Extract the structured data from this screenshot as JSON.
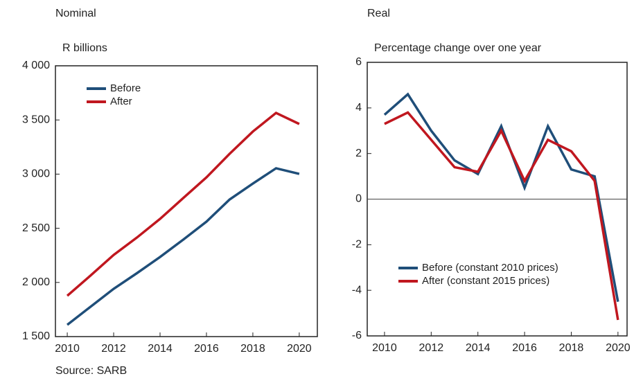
{
  "chart_data": [
    {
      "type": "line",
      "title": "Nominal",
      "y_label": "R billions",
      "x": [
        2010,
        2011,
        2012,
        2013,
        2014,
        2015,
        2016,
        2017,
        2018,
        2019,
        2020
      ],
      "series": [
        {
          "name": "Before",
          "color": "#1f4e79",
          "values": [
            1609,
            1775,
            1941,
            2085,
            2235,
            2395,
            2561,
            2766,
            2913,
            3054,
            3002
          ]
        },
        {
          "name": "After",
          "color": "#c0171f",
          "values": [
            1877,
            2063,
            2254,
            2414,
            2587,
            2779,
            2970,
            3188,
            3393,
            3565,
            3463
          ]
        }
      ],
      "xlim": [
        2009.49,
        2020.78
      ],
      "xticks": [
        2010,
        2012,
        2014,
        2016,
        2018,
        2020
      ],
      "ylim": [
        1500,
        4000
      ],
      "yticks": [
        {
          "value": 1500,
          "label": "1 500"
        },
        {
          "value": 2000,
          "label": "2 000"
        },
        {
          "value": 2500,
          "label": "2 500"
        },
        {
          "value": 3000,
          "label": "3 000"
        },
        {
          "value": 3500,
          "label": "3 500"
        },
        {
          "value": 4000,
          "label": "4 000"
        }
      ],
      "legend": "upper left",
      "zero_line": false
    },
    {
      "type": "line",
      "title": "Real",
      "y_label": "Percentage change over one year",
      "x": [
        2010,
        2011,
        2012,
        2013,
        2014,
        2015,
        2016,
        2017,
        2018,
        2019,
        2020
      ],
      "series": [
        {
          "name": "Before (constant 2010 prices)",
          "color": "#1f4e79",
          "values": [
            3.7,
            4.6,
            3.0,
            1.7,
            1.1,
            3.2,
            0.5,
            3.2,
            1.3,
            1.0,
            -4.5
          ]
        },
        {
          "name": "After (constant 2015 prices)",
          "color": "#c0171f",
          "values": [
            3.3,
            3.8,
            2.6,
            1.4,
            1.2,
            3.0,
            0.8,
            2.6,
            2.1,
            0.8,
            -5.3
          ]
        }
      ],
      "xlim": [
        2009.26,
        2020.39
      ],
      "xticks": [
        2010,
        2012,
        2014,
        2016,
        2018,
        2020
      ],
      "ylim": [
        -6,
        6
      ],
      "yticks": [
        -6,
        -4,
        -2,
        0,
        2,
        4,
        6
      ],
      "legend": "lower left",
      "zero_line": true
    }
  ],
  "source": "Source: SARB"
}
